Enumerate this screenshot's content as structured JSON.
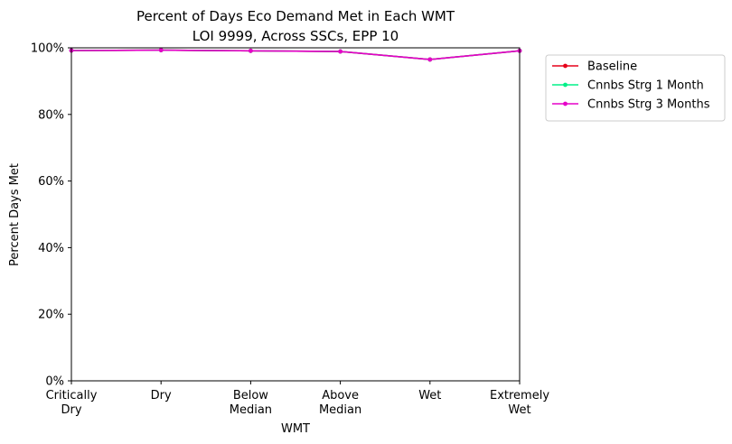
{
  "chart_data": {
    "type": "line",
    "title": "Percent of Days Eco Demand Met in Each WMT",
    "subtitle": "LOI 9999, Across SSCs, EPP 10",
    "xlabel": "WMT",
    "ylabel": "Percent Days Met",
    "categories": [
      [
        "Critically",
        "Dry"
      ],
      [
        "Dry"
      ],
      [
        "Below",
        "Median"
      ],
      [
        "Above",
        "Median"
      ],
      [
        "Wet"
      ],
      [
        "Extremely",
        "Wet"
      ]
    ],
    "ylim": [
      0,
      100
    ],
    "yticks": [
      0,
      20,
      40,
      60,
      80,
      100
    ],
    "ytick_labels": [
      "0%",
      "20%",
      "40%",
      "60%",
      "80%",
      "100%"
    ],
    "grid": false,
    "legend_position": "outside-top-right",
    "series": [
      {
        "name": "Baseline",
        "color": "#e6001a",
        "values": [
          99.2,
          99.3,
          99.1,
          98.9,
          96.5,
          99.1
        ]
      },
      {
        "name": "Cnnbs Strg 1 Month",
        "color": "#00f088",
        "values": [
          99.2,
          99.3,
          99.1,
          98.9,
          96.5,
          99.1
        ]
      },
      {
        "name": "Cnnbs Strg 3 Months",
        "color": "#e600c8",
        "values": [
          99.2,
          99.3,
          99.1,
          98.9,
          96.5,
          99.1
        ]
      }
    ]
  }
}
